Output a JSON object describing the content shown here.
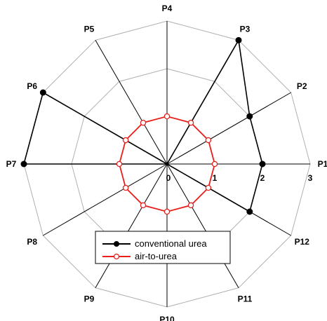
{
  "chart_data": {
    "type": "radar",
    "title": "",
    "axes": [
      "P1",
      "P2",
      "P3",
      "P4",
      "P5",
      "P6",
      "P7",
      "P8",
      "P9",
      "P10",
      "P11",
      "P12"
    ],
    "range": [
      0,
      3
    ],
    "ticks": [
      {
        "value": 0,
        "label": "0"
      },
      {
        "value": 1,
        "label": "1"
      },
      {
        "value": 2,
        "label": "2"
      },
      {
        "value": 3,
        "label": "3"
      }
    ],
    "grid": true,
    "legend_position": "bottom-center",
    "series": [
      {
        "name": "conventional urea",
        "color": "#000000",
        "marker": "filled-circle",
        "values": [
          2.0,
          2.0,
          3.0,
          0.0,
          0.0,
          3.0,
          3.0,
          0.0,
          0.0,
          0.0,
          0.0,
          2.0
        ]
      },
      {
        "name": "air-to-urea",
        "color": "#e8201c",
        "marker": "open-circle",
        "values": [
          1.0,
          1.0,
          1.0,
          1.0,
          1.0,
          1.0,
          1.0,
          1.0,
          1.0,
          1.0,
          1.0,
          1.0
        ]
      }
    ]
  }
}
